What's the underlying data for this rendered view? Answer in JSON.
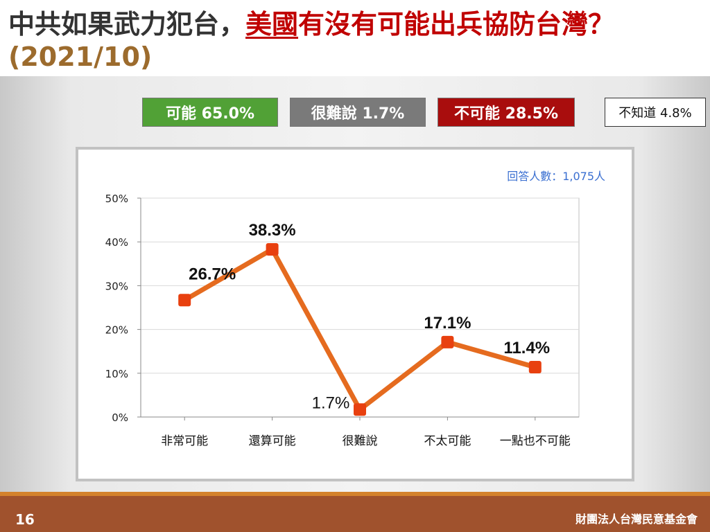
{
  "title": {
    "part1": "中共如果武力犯台，",
    "part2": "美國",
    "part3": "有沒有可能出兵協防台灣？",
    "date": "(2021/10)"
  },
  "summary": {
    "likely": "可能 65.0%",
    "hard_to_say": "很難說 1.7%",
    "unlikely": "不可能 28.5%",
    "unknown": "不知道 4.8%"
  },
  "chart_data": {
    "type": "line",
    "categories": [
      "非常可能",
      "還算可能",
      "很難說",
      "不太可能",
      "一點也不可能"
    ],
    "values": [
      26.7,
      38.3,
      1.7,
      17.1,
      11.4
    ],
    "data_labels": [
      "26.7%",
      "38.3%",
      "1.7%",
      "17.1%",
      "11.4%"
    ],
    "ylim": [
      0,
      50
    ],
    "yticks": [
      "0%",
      "10%",
      "20%",
      "30%",
      "40%",
      "50%"
    ],
    "annotation": "回答人數：1,075人",
    "line_color": "#e56b1f",
    "marker_color": "#e8400f",
    "grid": true
  },
  "footer": {
    "page_number": "16",
    "organization": "財團法人台灣民意基金會"
  },
  "colors": {
    "likely": "#51a136",
    "hard_to_say": "#7a7a7a",
    "unlikely": "#a90d0d",
    "title_red": "#c00000",
    "date_brown": "#9c6b2d",
    "footer": "#a0522d"
  }
}
